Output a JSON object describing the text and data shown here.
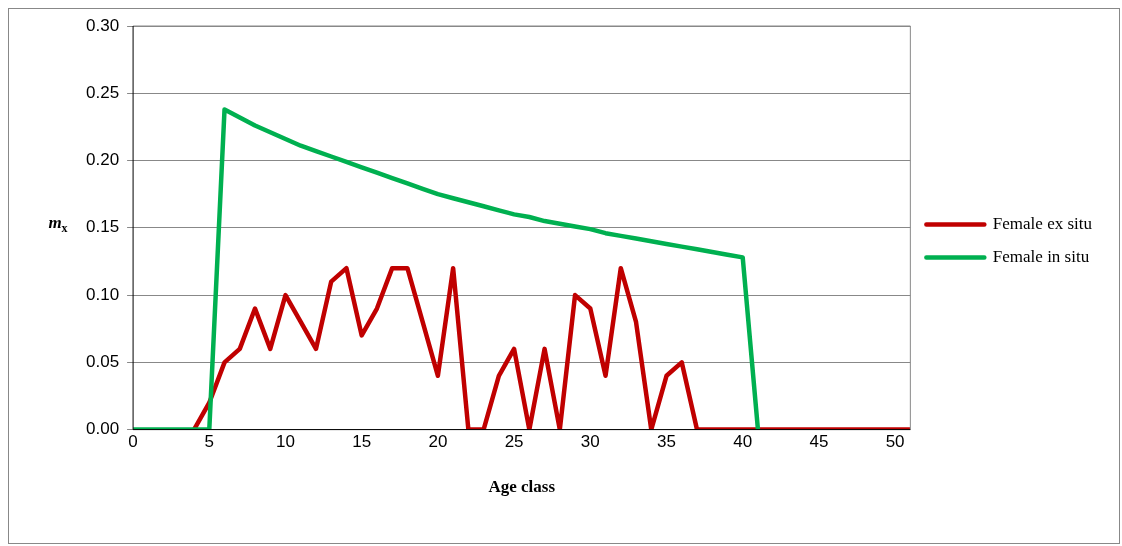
{
  "chart_data": {
    "type": "line",
    "xlabel": "Age class",
    "ylabel": "m$_{x}$",
    "x": [
      0,
      1,
      2,
      3,
      4,
      5,
      6,
      7,
      8,
      9,
      10,
      11,
      12,
      13,
      14,
      15,
      16,
      17,
      18,
      19,
      20,
      21,
      22,
      23,
      24,
      25,
      26,
      27,
      28,
      29,
      30,
      31,
      32,
      33,
      34,
      35,
      36,
      37,
      38,
      39,
      40,
      41,
      42,
      43,
      44,
      45,
      46,
      47,
      48,
      49,
      50,
      51
    ],
    "xlim": [
      0,
      51
    ],
    "xticks": [
      0,
      5,
      10,
      15,
      20,
      25,
      30,
      35,
      40,
      45,
      50
    ],
    "ylim": [
      0,
      0.3
    ],
    "yticks": [
      {
        "value": 0,
        "label": "0.00"
      },
      {
        "value": 0.05,
        "label": "0.05"
      },
      {
        "value": 0.1,
        "label": "0.10"
      },
      {
        "value": 0.15,
        "label": "0.15"
      },
      {
        "value": 0.2,
        "label": "0.20"
      },
      {
        "value": 0.25,
        "label": "0.25"
      },
      {
        "value": 0.3,
        "label": "0.30"
      }
    ],
    "grid": "y",
    "legend": "right",
    "marker": "none",
    "line_style": "solid",
    "series": [
      {
        "name": "Female ex situ",
        "color": "#c00000",
        "values": [
          null,
          null,
          null,
          null,
          0,
          0.02,
          0.05,
          0.06,
          0.09,
          0.06,
          0.1,
          0.08,
          0.06,
          0.11,
          0.12,
          0.07,
          0.09,
          0.12,
          0.12,
          0.08,
          0.04,
          0.12,
          0,
          0,
          0.04,
          0.06,
          0,
          0.06,
          0,
          0.1,
          0.09,
          0.04,
          0.12,
          0.08,
          0,
          0.04,
          0.05,
          0,
          0,
          0,
          0,
          0,
          0,
          0,
          0,
          0,
          0,
          0,
          0,
          0,
          0,
          0
        ]
      },
      {
        "name": "Female in situ",
        "color": "#00b050",
        "values": [
          0,
          0,
          0,
          0,
          0,
          0,
          0.238,
          0.232,
          0.226,
          0.221,
          0.216,
          0.211,
          0.207,
          0.203,
          0.199,
          0.195,
          0.191,
          0.187,
          0.183,
          0.179,
          0.175,
          0.172,
          0.169,
          0.166,
          0.163,
          0.16,
          0.158,
          0.155,
          0.153,
          0.151,
          0.149,
          0.146,
          0.144,
          0.142,
          0.14,
          0.138,
          0.136,
          0.134,
          0.132,
          0.13,
          0.128,
          0,
          null,
          null,
          null,
          null,
          null,
          null,
          null,
          null,
          null,
          null
        ]
      }
    ]
  }
}
